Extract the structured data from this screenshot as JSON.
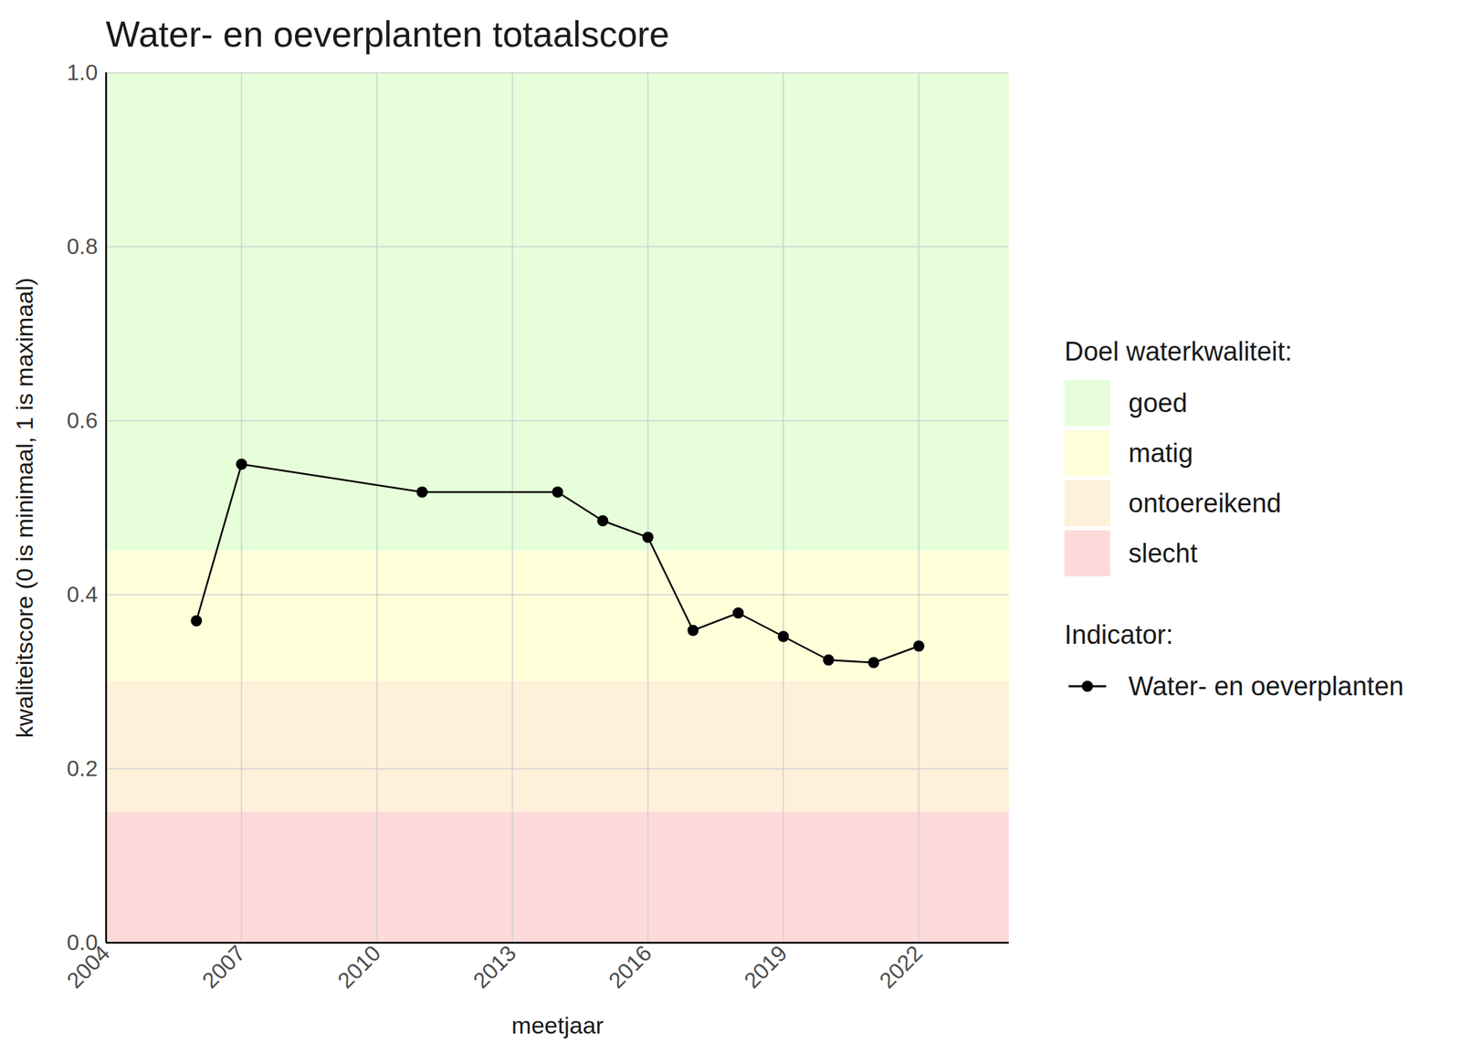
{
  "chart_data": {
    "type": "line",
    "title": "Water- en oeverplanten totaalscore",
    "x_label": "meetjaar",
    "y_label": "kwaliteitscore (0 is minimaal, 1 is maximaal)",
    "x": [
      2006,
      2007,
      2011,
      2014,
      2015,
      2016,
      2017,
      2018,
      2019,
      2020,
      2021,
      2022
    ],
    "series": [
      {
        "name": "Water- en oeverplanten",
        "color": "#000000",
        "marker": "circle",
        "values": [
          0.37,
          0.55,
          0.518,
          0.518,
          0.485,
          0.466,
          0.359,
          0.379,
          0.352,
          0.325,
          0.322,
          0.341
        ]
      }
    ],
    "xlim": [
      2004,
      2024
    ],
    "xticks": [
      2004,
      2007,
      2010,
      2013,
      2016,
      2019,
      2022
    ],
    "ylim": [
      0,
      1
    ],
    "yticks": [
      {
        "value": 0,
        "label": "0.0"
      },
      0.2,
      0.4,
      0.6,
      0.8,
      {
        "value": 1,
        "label": "1.0"
      }
    ],
    "grid": true,
    "legend": "right",
    "legend_title": "Indicator:",
    "bands_title": "Doel waterkwaliteit:",
    "bands": [
      {
        "name": "goed",
        "from": 0.45,
        "to": 1,
        "color": "#e6ffda"
      },
      {
        "name": "matig",
        "from": 0.3,
        "to": 0.45,
        "color": "#ffffda"
      },
      {
        "name": "ontoereikend",
        "from": 0.15,
        "to": 0.3,
        "color": "#fff0da"
      },
      {
        "name": "slecht",
        "from": 0,
        "to": 0.15,
        "color": "#ffdada"
      }
    ]
  }
}
